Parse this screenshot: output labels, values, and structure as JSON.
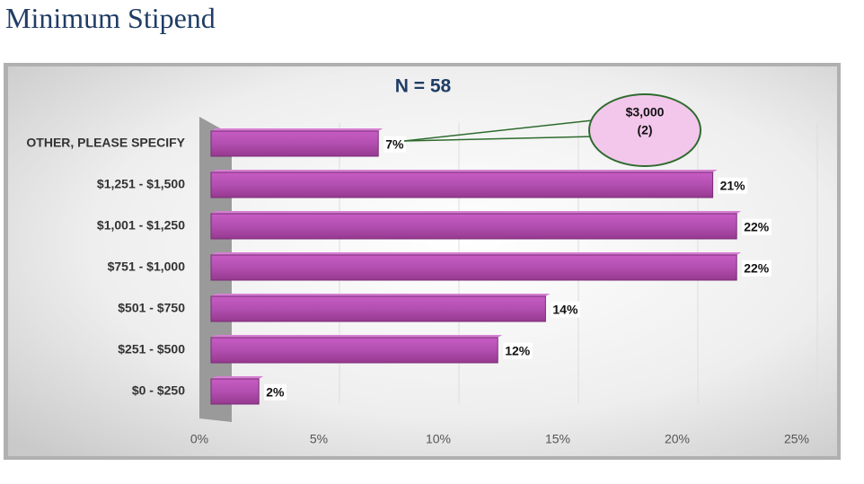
{
  "page_title": "Minimum Stipend",
  "chart_data": {
    "type": "bar",
    "orientation": "horizontal",
    "title": "N = 58",
    "categories": [
      "OTHER, PLEASE SPECIFY",
      "$1,251 - $1,500",
      "$1,001 - $1,250",
      "$751 - $1,000",
      "$501 - $750",
      "$251 - $500",
      "$0 - $250"
    ],
    "values": [
      7,
      21,
      22,
      22,
      14,
      12,
      2
    ],
    "value_labels": [
      "7%",
      "21%",
      "22%",
      "22%",
      "14%",
      "12%",
      "2%"
    ],
    "color": "#b24fb0",
    "xlim": [
      0,
      25
    ],
    "xticks": [
      {
        "value": 0,
        "label": "0%"
      },
      {
        "value": 5,
        "label": "5%"
      },
      {
        "value": 10,
        "label": "10%"
      },
      {
        "value": 15,
        "label": "15%"
      },
      {
        "value": 20,
        "label": "20%"
      },
      {
        "value": 25,
        "label": "25%"
      }
    ],
    "grid": true,
    "annotation": {
      "lines": [
        "$3,000",
        "(2)"
      ]
    }
  }
}
